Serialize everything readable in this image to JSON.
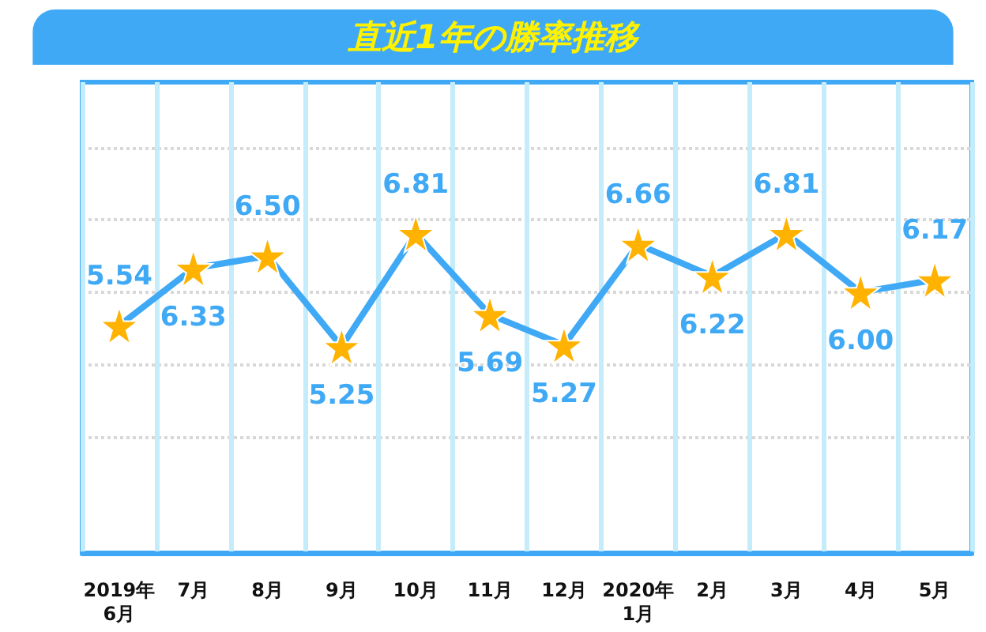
{
  "chart_data": {
    "type": "line",
    "title": "直近1年の勝率推移",
    "categories": [
      "2019年\n6月",
      "7月",
      "8月",
      "9月",
      "10月",
      "11月",
      "12月",
      "2020年\n1月",
      "2月",
      "3月",
      "4月",
      "5月"
    ],
    "series": [
      {
        "color": "#3fa9f5",
        "values": [
          5.54,
          6.33,
          6.5,
          5.25,
          6.81,
          5.69,
          5.27,
          6.66,
          6.22,
          6.81,
          6.0,
          6.17
        ],
        "value_labels": [
          "5.54",
          "6.33",
          "6.50",
          "5.25",
          "6.81",
          "5.69",
          "5.27",
          "6.66",
          "6.22",
          "6.81",
          "6.00",
          "6.17"
        ]
      }
    ],
    "ylim": [
      2.4,
      8.9
    ],
    "yticks": [
      {
        "value": 4,
        "label": null
      },
      {
        "value": 5,
        "label": null
      },
      {
        "value": 6,
        "label": null
      },
      {
        "value": 7,
        "label": null
      },
      {
        "value": 8,
        "label": null
      }
    ],
    "grid": true,
    "marker": "star",
    "line_style": "solid",
    "tick_labels": "x"
  }
}
